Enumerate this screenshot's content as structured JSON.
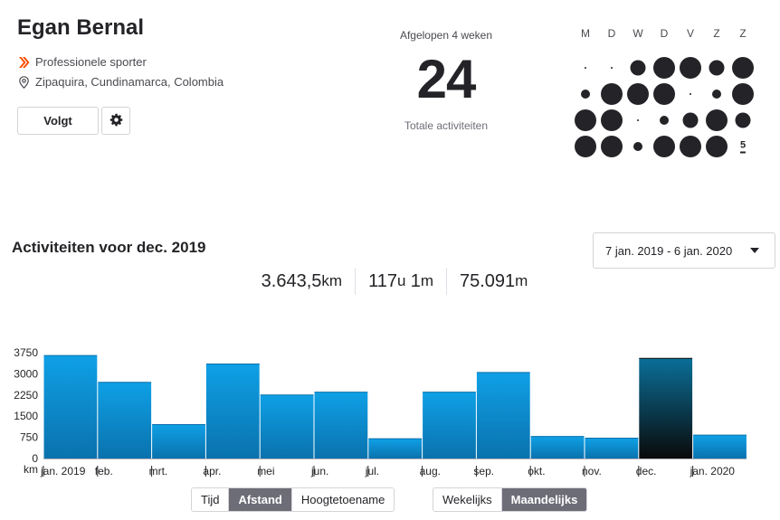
{
  "athlete": {
    "name": "Egan Bernal",
    "title": "Professionele sporter",
    "location": "Zipaquira, Cundinamarca, Colombia",
    "follow_label": "Volgt"
  },
  "four_weeks": {
    "label": "Afgelopen 4 weken",
    "count": "24",
    "sublabel": "Totale activiteiten"
  },
  "activity_grid": {
    "days": [
      "M",
      "D",
      "W",
      "D",
      "V",
      "Z",
      "Z"
    ],
    "today_label": "5",
    "weeks": [
      [
        "tiny",
        "tiny",
        "medium",
        "large",
        "large",
        "medium",
        "large"
      ],
      [
        "small",
        "large",
        "large",
        "large",
        "tiny",
        "small",
        "large"
      ],
      [
        "large",
        "large",
        "tiny",
        "small",
        "medium",
        "large",
        "medium"
      ],
      [
        "large",
        "large",
        "small",
        "large",
        "large",
        "large",
        "today"
      ]
    ]
  },
  "section": {
    "title": "Activiteiten voor dec. 2019",
    "date_range": "7 jan. 2019 - 6 jan. 2020"
  },
  "summary": {
    "distance_value": "3.643,5",
    "distance_unit": "km",
    "time_hours": "117",
    "time_h_unit": "u",
    "time_minutes": "1",
    "time_m_unit": "m",
    "elevation_value": "75.091",
    "elevation_unit": "m"
  },
  "chart_data": {
    "type": "bar",
    "unit_label": "km",
    "ylim": [
      0,
      3750
    ],
    "yticks": [
      3750,
      3000,
      2250,
      1500,
      750,
      0
    ],
    "categories": [
      "jan. 2019",
      "feb.",
      "mrt.",
      "apr.",
      "mei",
      "jun.",
      "jul.",
      "aug.",
      "sep.",
      "okt.",
      "nov.",
      "dec.",
      "jan. 2020"
    ],
    "values": [
      3650,
      2700,
      1200,
      3350,
      2250,
      2350,
      700,
      2350,
      3050,
      780,
      720,
      3550,
      830
    ],
    "selected_index": 11,
    "colors": {
      "bar_top": "#0fa0e6",
      "bar_bottom": "#0a72ad",
      "selected_top": "#0a6f98",
      "selected_bottom": "#0a0a0a"
    }
  },
  "toggles": {
    "metric": [
      "Tijd",
      "Afstand",
      "Hoogtetoename"
    ],
    "metric_active": "Afstand",
    "period": [
      "Wekelijks",
      "Maandelijks"
    ],
    "period_active": "Maandelijks"
  }
}
